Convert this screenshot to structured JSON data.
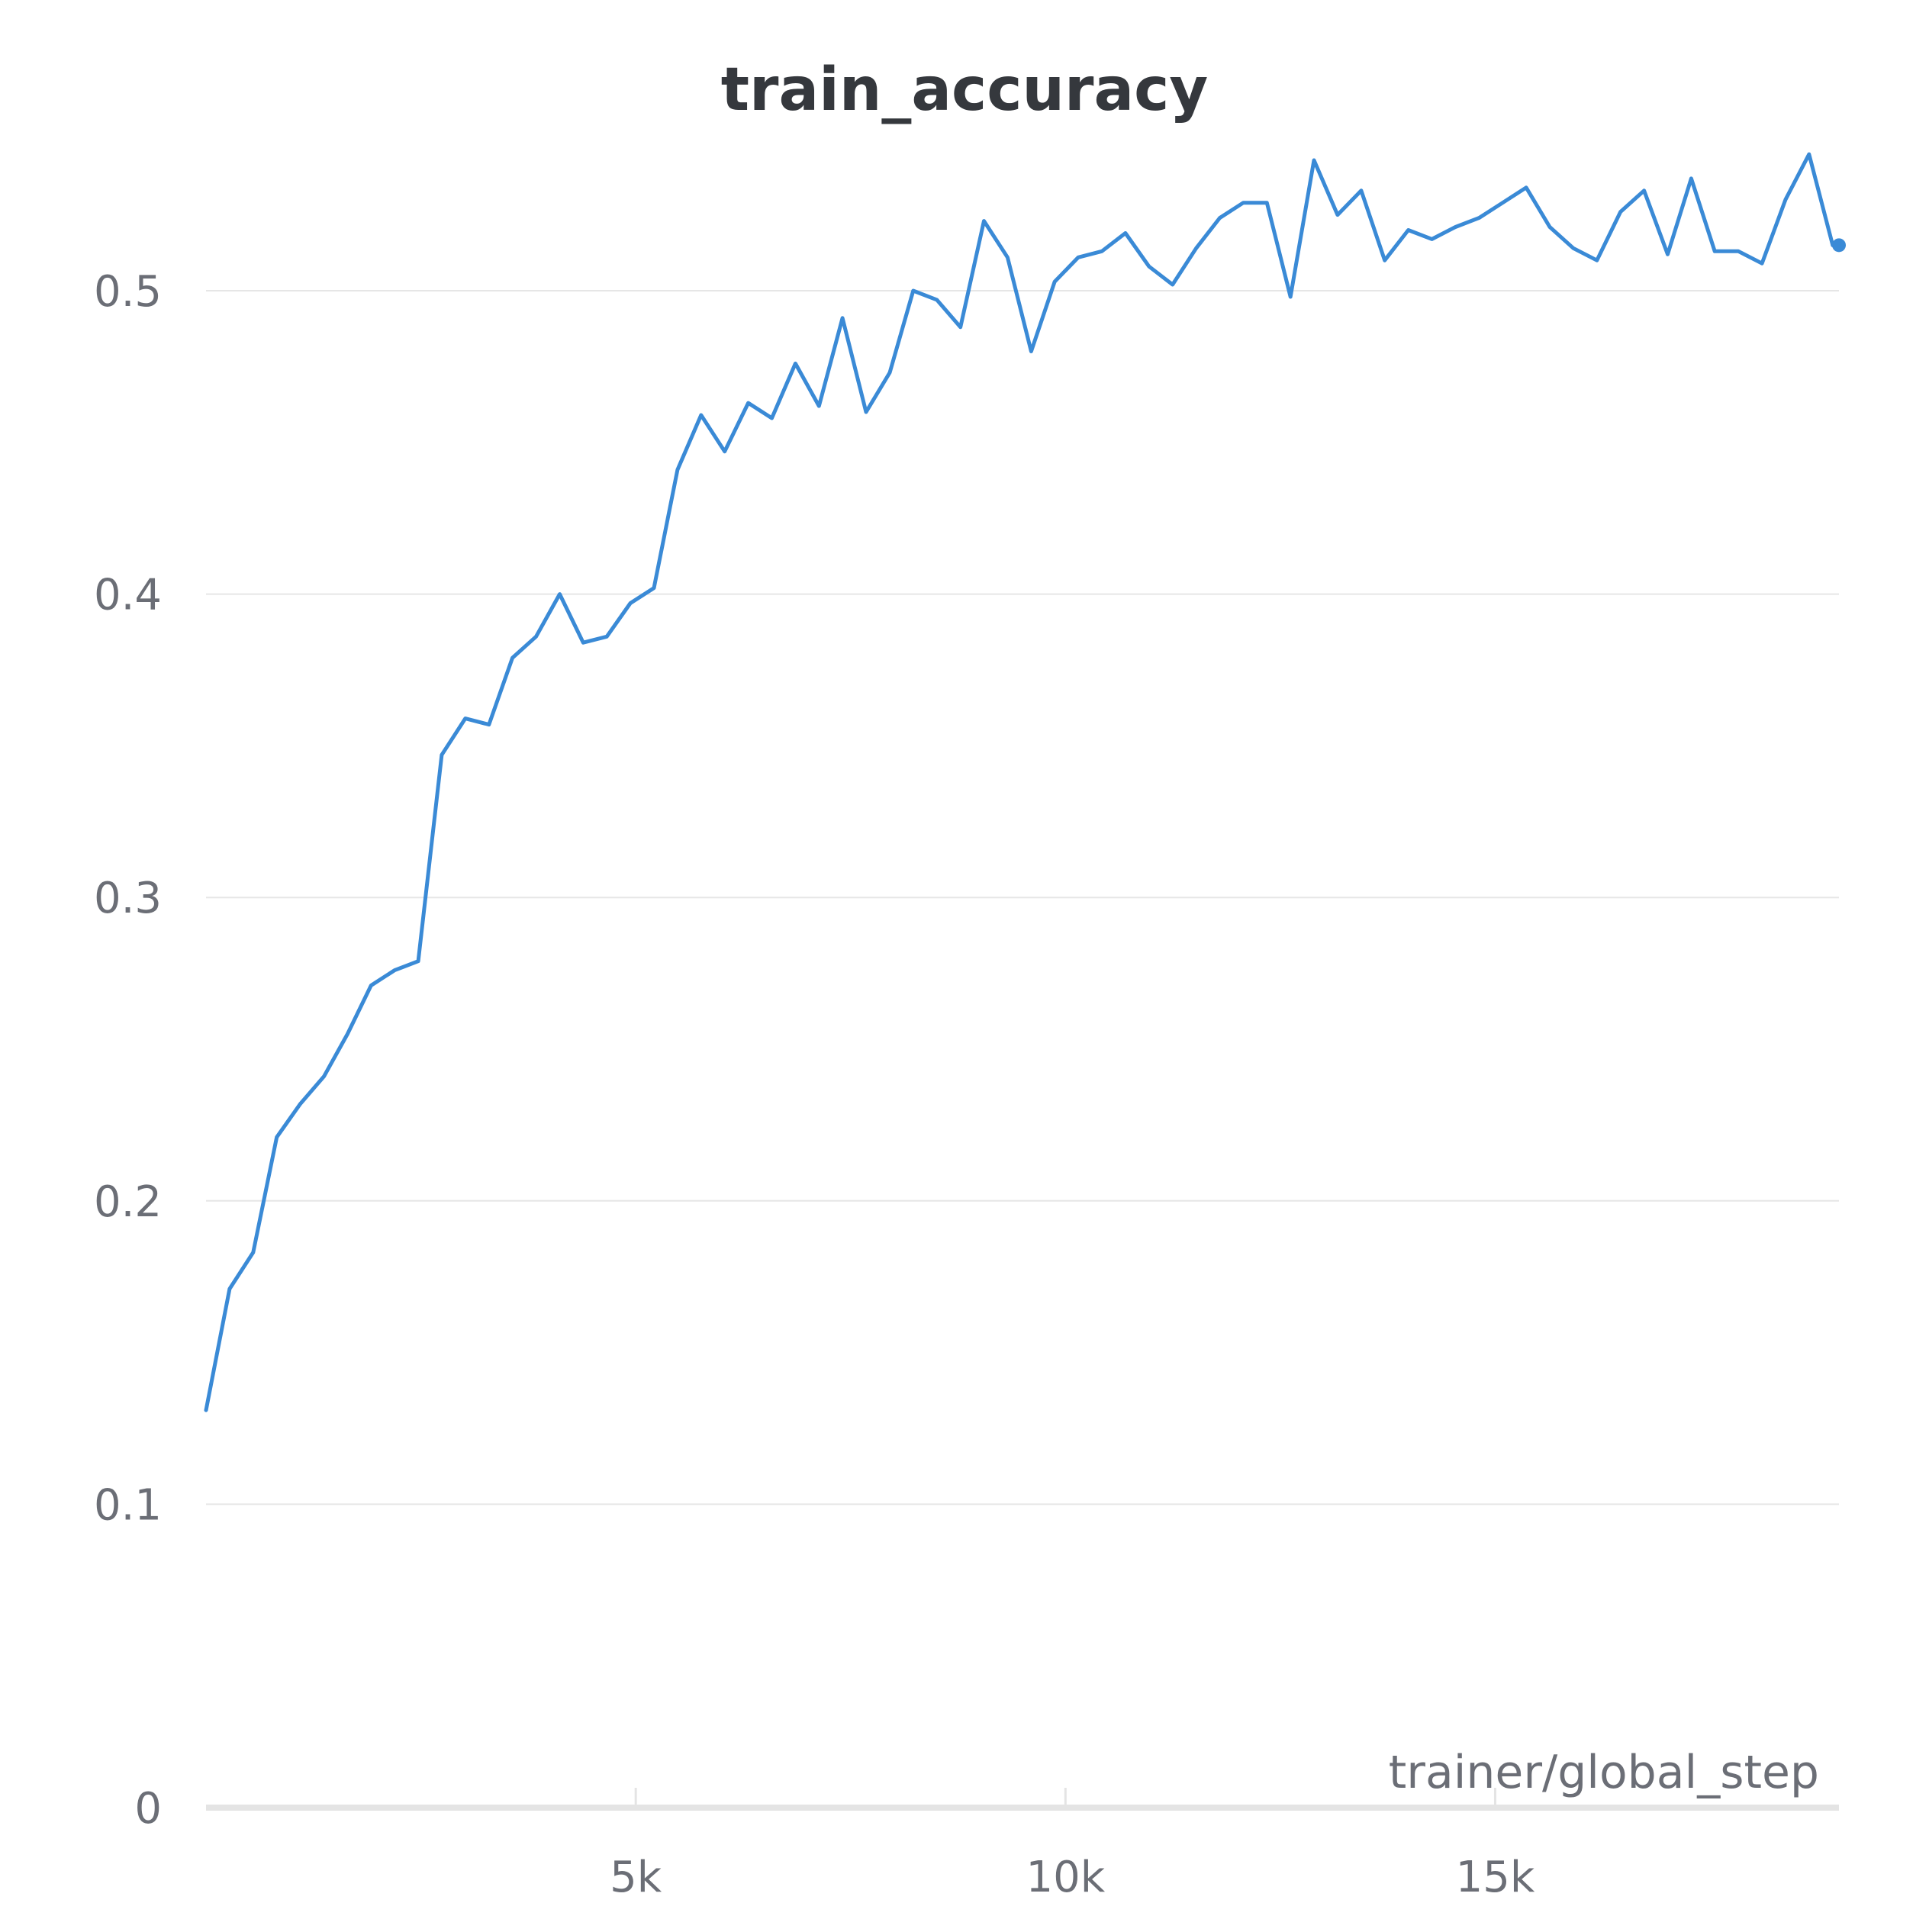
{
  "chart_data": {
    "type": "line",
    "title": "train_accuracy",
    "xlabel": "trainer/global_step",
    "ylabel": "",
    "xlim": [
      0,
      19000
    ],
    "ylim": [
      0,
      0.5
    ],
    "x_ticks": [
      {
        "value": 5000,
        "label": "5k"
      },
      {
        "value": 10000,
        "label": "10k"
      },
      {
        "value": 15000,
        "label": "15k"
      }
    ],
    "y_ticks": [
      {
        "value": 0,
        "label": "0"
      },
      {
        "value": 0.1,
        "label": "0.1"
      },
      {
        "value": 0.2,
        "label": "0.2"
      },
      {
        "value": 0.3,
        "label": "0.3"
      },
      {
        "value": 0.4,
        "label": "0.4"
      },
      {
        "value": 0.5,
        "label": "0.5"
      }
    ],
    "grid": true,
    "legend": "none",
    "series": [
      {
        "color": "#3a8ad6",
        "last_point_marker": true,
        "x": [
          0,
          274,
          549,
          823,
          1097,
          1372,
          1646,
          1920,
          2194,
          2469,
          2743,
          3017,
          3292,
          3566,
          3840,
          4115,
          4389,
          4663,
          4937,
          5212,
          5486,
          5760,
          6035,
          6309,
          6583,
          6858,
          7132,
          7406,
          7680,
          7955,
          8229,
          8503,
          8778,
          9052,
          9326,
          9601,
          9875,
          10149,
          10423,
          10698,
          10972,
          11246,
          11521,
          11795,
          12069,
          12344,
          12618,
          12892,
          13166,
          13441,
          13715,
          13989,
          14264,
          14538,
          14812,
          15087,
          15361,
          15635,
          15909,
          16184,
          16458,
          16732,
          17007,
          17281,
          17555,
          17830,
          18104,
          18378,
          18652,
          18927,
          19000
        ],
        "y": [
          0.131,
          0.171,
          0.183,
          0.221,
          0.232,
          0.241,
          0.255,
          0.271,
          0.276,
          0.279,
          0.347,
          0.359,
          0.357,
          0.379,
          0.386,
          0.4,
          0.384,
          0.386,
          0.397,
          0.402,
          0.441,
          0.459,
          0.447,
          0.463,
          0.458,
          0.476,
          0.462,
          0.491,
          0.46,
          0.473,
          0.5,
          0.497,
          0.488,
          0.523,
          0.511,
          0.48,
          0.503,
          0.511,
          0.513,
          0.519,
          0.508,
          0.502,
          0.514,
          0.524,
          0.529,
          0.529,
          0.498,
          0.543,
          0.525,
          0.533,
          0.51,
          0.52,
          0.517,
          0.521,
          0.524,
          0.529,
          0.534,
          0.521,
          0.514,
          0.51,
          0.526,
          0.533,
          0.512,
          0.537,
          0.513,
          0.513,
          0.509,
          0.53,
          0.545,
          0.515,
          0.515
        ]
      }
    ]
  }
}
